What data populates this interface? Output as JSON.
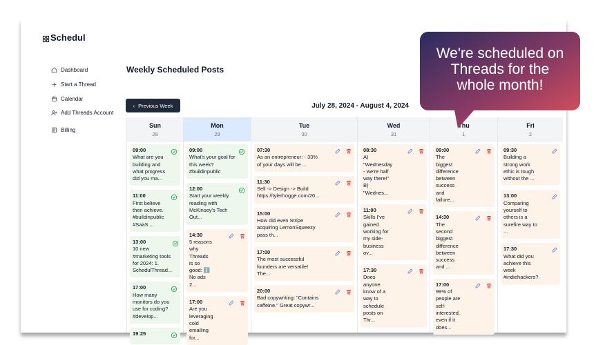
{
  "logo": "Schedul",
  "sidebar": {
    "items": [
      "Dashboard",
      "Start a Thread",
      "Calendar",
      "Add Threads Account",
      "Billing"
    ]
  },
  "page_title": "Weekly Scheduled Posts",
  "previous_button": "Previous Week",
  "date_range": "July 28, 2024 - August 4, 2024",
  "callout": {
    "lines": [
      "We're scheduled on",
      "Threads for the",
      "whole month!"
    ]
  },
  "calendar": {
    "days": [
      {
        "name": "Sun",
        "date": "28",
        "posts": [
          {
            "time": "09:00",
            "status": "posted",
            "lines": [
              "What are you",
              "building and",
              "what progress",
              "did you ma..."
            ]
          },
          {
            "time": "11:00",
            "status": "posted",
            "lines": [
              "First believe",
              "then achieve.",
              "#buildinpublic",
              "#SaaS ..."
            ]
          },
          {
            "time": "13:00",
            "status": "posted",
            "lines": [
              "10 new",
              "#marketing tools",
              "for 2024: 1.",
              "SchedulThread..."
            ]
          },
          {
            "time": "17:00",
            "status": "posted",
            "lines": [
              "How many",
              "monitors do you",
              "use for coding?",
              "#develop..."
            ]
          },
          {
            "time": "19:25",
            "status": "posted",
            "lines": []
          }
        ]
      },
      {
        "name": "Mon",
        "date": "29",
        "highlight": true,
        "posts": [
          {
            "time": "09:00",
            "status": "posted",
            "lines": [
              "What's your goal for",
              "this week?",
              "#buildinpublic"
            ]
          },
          {
            "time": "12:00",
            "status": "posted",
            "lines": [
              "Start your weekly",
              "reading with",
              "McKinsey's Tech",
              "Out..."
            ]
          },
          {
            "time": "14:30",
            "status": "scheduled",
            "lines": [
              "5 reasons",
              "why",
              "Threads",
              "is so",
              "good: ℹ️",
              "No ads",
              "2..."
            ]
          },
          {
            "time": "17:00",
            "status": "scheduled",
            "lines": [
              "Are you",
              "leveraging",
              "cold",
              "emailing",
              "for..."
            ]
          }
        ]
      },
      {
        "name": "Tue",
        "date": "30",
        "posts": [
          {
            "time": "07:30",
            "status": "scheduled",
            "lines": [
              "As an entrepreneur: - 33%",
              "of your days will be ..."
            ]
          },
          {
            "time": "11:30",
            "status": "scheduled",
            "lines": [
              "Sell -> Design -> Build",
              "https://tylerhogge.com/20..."
            ]
          },
          {
            "time": "15:00",
            "status": "scheduled",
            "lines": [
              "How did even Stripe",
              "acquiring LemonSqueezy",
              "pass th..."
            ]
          },
          {
            "time": "17:00",
            "status": "scheduled",
            "lines": [
              "The most successful",
              "founders are versatile!",
              "The..."
            ]
          },
          {
            "time": "20:00",
            "status": "scheduled",
            "lines": [
              "Bad copywriting: \"Contains",
              "caffeine.\" Great copywr..."
            ]
          }
        ]
      },
      {
        "name": "Wed",
        "date": "31",
        "posts": [
          {
            "time": "08:30",
            "status": "scheduled",
            "lines": [
              "A)",
              "\"Wednesday",
              "- we're half",
              "way there!\"",
              "B)",
              "\"Wednes..."
            ]
          },
          {
            "time": "11:00",
            "status": "scheduled",
            "lines": [
              "Skills I've",
              "gained",
              "working for",
              "my side-",
              "business",
              "ov..."
            ]
          },
          {
            "time": "17:30",
            "status": "scheduled",
            "lines": [
              "Does",
              "anyone",
              "know of a",
              "way to",
              "schedule",
              "posts on",
              "Thr..."
            ]
          }
        ]
      },
      {
        "name": "Thu",
        "date": "1",
        "posts": [
          {
            "time": "09:00",
            "status": "scheduled",
            "lines": [
              "The",
              "biggest",
              "difference",
              "between",
              "success",
              "and",
              "failure..."
            ]
          },
          {
            "time": "14:30",
            "status": "scheduled",
            "lines": [
              "The",
              "second",
              "biggest",
              "difference",
              "between",
              "success",
              "and ..."
            ]
          },
          {
            "time": "17:00",
            "status": "scheduled",
            "lines": [
              "99% of",
              "people are",
              "self-",
              "interested,",
              "even if it",
              "does..."
            ]
          }
        ]
      },
      {
        "name": "Fri",
        "date": "2",
        "posts": [
          {
            "time": "09:30",
            "status": "editable",
            "lines": [
              "Building a",
              "strong work",
              "ethic is tough",
              "without the ..."
            ]
          },
          {
            "time": "13:00",
            "status": "editable",
            "lines": [
              "Comparing",
              "yourself to",
              "others is a",
              "surefire way to",
              "..."
            ]
          },
          {
            "time": "17:30",
            "status": "editable",
            "lines": [
              "What did you",
              "achieve this",
              "week",
              "#indiehackers?"
            ]
          }
        ]
      }
    ]
  }
}
